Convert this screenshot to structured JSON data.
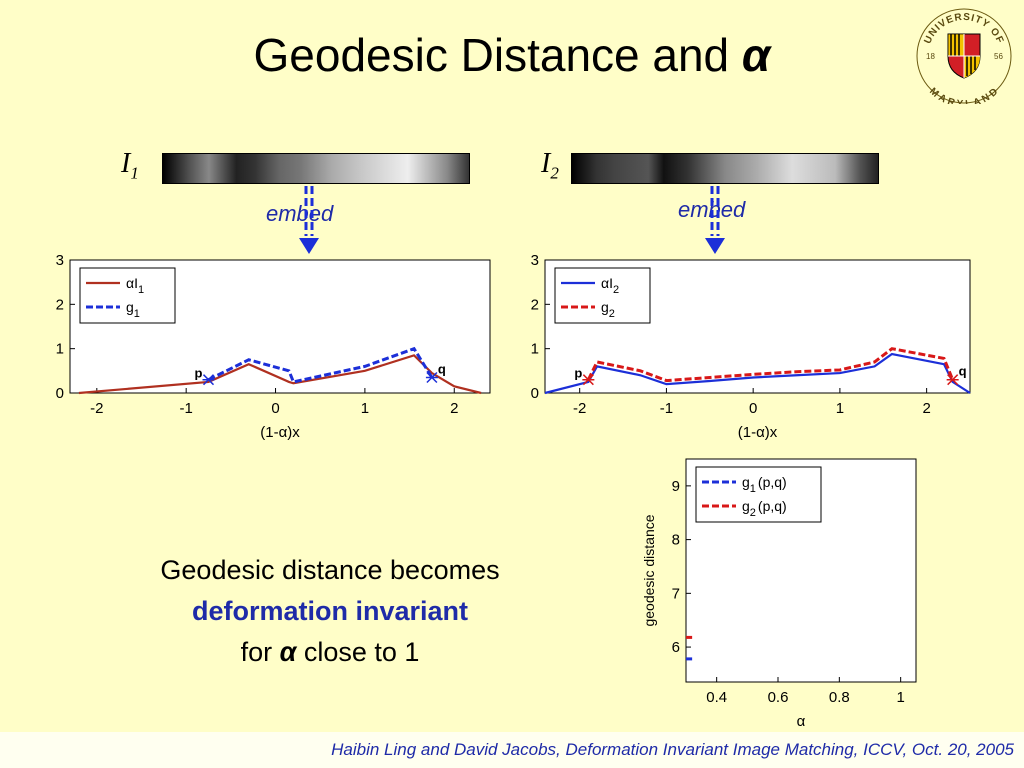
{
  "slide": {
    "title_text": "Geodesic Distance and ",
    "title_symbol": "α",
    "logo": {
      "top_text": "UNIVERSITY OF",
      "bottom_text": "MARYLAND",
      "year_left": "18",
      "year_right": "56"
    },
    "images": [
      {
        "label": "I",
        "sub": "1",
        "embed": "embed"
      },
      {
        "label": "I",
        "sub": "2",
        "embed": "embed"
      }
    ],
    "body": {
      "line1": "Geodesic distance becomes",
      "line2": "deformation invariant",
      "line3_pre": "for ",
      "line3_symbol": "α",
      "line3_post": " close to 1"
    },
    "footer": "Haibin Ling and David Jacobs,  Deformation Invariant Image Matching, ICCV, Oct. 20, 2005"
  },
  "chart_data": [
    {
      "type": "line",
      "xlabel": "(1-α)x",
      "x_ticks": [
        "-2",
        "-1",
        "0",
        "1",
        "2"
      ],
      "y_ticks": [
        "0",
        "1",
        "2",
        "3"
      ],
      "xlim": [
        -2.3,
        2.4
      ],
      "ylim": [
        0,
        3
      ],
      "legend": "top-left",
      "legend_entries": [
        {
          "prefix": "α",
          "label": "I",
          "sub": "1"
        },
        {
          "label": "g",
          "sub": "1"
        }
      ],
      "point_labels": [
        "p",
        "q"
      ],
      "series": [
        {
          "color": "#b03020",
          "dashed": false,
          "x": [
            -2.2,
            -0.75,
            -0.3,
            0.15,
            0.2,
            1.0,
            1.55,
            1.75,
            2.0,
            2.3
          ],
          "y": [
            0.0,
            0.25,
            0.65,
            0.25,
            0.22,
            0.5,
            0.85,
            0.45,
            0.15,
            0.0
          ]
        },
        {
          "color": "#1c2fd8",
          "dashed": true,
          "x": [
            -0.75,
            -0.3,
            0.15,
            0.2,
            1.0,
            1.55,
            1.75
          ],
          "y": [
            0.3,
            0.75,
            0.5,
            0.25,
            0.6,
            1.0,
            0.35
          ]
        }
      ]
    },
    {
      "type": "line",
      "xlabel": "(1-α)x",
      "x_ticks": [
        "-2",
        "-1",
        "0",
        "1",
        "2"
      ],
      "y_ticks": [
        "0",
        "1",
        "2",
        "3"
      ],
      "xlim": [
        -2.4,
        2.5
      ],
      "ylim": [
        0,
        3
      ],
      "legend": "top-left",
      "legend_entries": [
        {
          "prefix": "α",
          "label": "I",
          "sub": "2"
        },
        {
          "label": "g",
          "sub": "2"
        }
      ],
      "point_labels": [
        "p",
        "q"
      ],
      "series": [
        {
          "color": "#1c2fd8",
          "dashed": false,
          "x": [
            -2.4,
            -1.9,
            -1.8,
            -1.3,
            -1.0,
            -0.5,
            0.0,
            0.5,
            1.0,
            1.4,
            1.6,
            2.2,
            2.3,
            2.5
          ],
          "y": [
            0.0,
            0.25,
            0.6,
            0.4,
            0.2,
            0.27,
            0.35,
            0.4,
            0.45,
            0.6,
            0.88,
            0.65,
            0.25,
            0.0
          ]
        },
        {
          "color": "#d81818",
          "dashed": true,
          "x": [
            -1.9,
            -1.8,
            -1.3,
            -1.0,
            -0.5,
            0.0,
            0.5,
            1.0,
            1.4,
            1.6,
            2.2,
            2.3
          ],
          "y": [
            0.3,
            0.7,
            0.5,
            0.28,
            0.35,
            0.42,
            0.48,
            0.52,
            0.7,
            1.0,
            0.78,
            0.3
          ]
        }
      ]
    },
    {
      "type": "line",
      "ylabel": "geodesic distance",
      "xlabel": "α",
      "x_ticks": [
        "0.4",
        "0.6",
        "0.8",
        "1"
      ],
      "y_ticks": [
        "6",
        "7",
        "8",
        "9"
      ],
      "xlim": [
        0.3,
        1.05
      ],
      "ylim": [
        5.35,
        9.5
      ],
      "legend": "top-left",
      "legend_entries": [
        {
          "label": "g",
          "sub": "1",
          "suffix": "(p,q)"
        },
        {
          "label": "g",
          "sub": "2",
          "suffix": "(p,q)"
        }
      ],
      "series": [
        {
          "color": "#1c2fd8",
          "dashed": true,
          "x": [
            0.3,
            0.32
          ],
          "y": [
            5.78,
            5.78
          ]
        },
        {
          "color": "#d81818",
          "dashed": true,
          "x": [
            0.3,
            0.32
          ],
          "y": [
            6.18,
            6.18
          ]
        }
      ]
    }
  ]
}
